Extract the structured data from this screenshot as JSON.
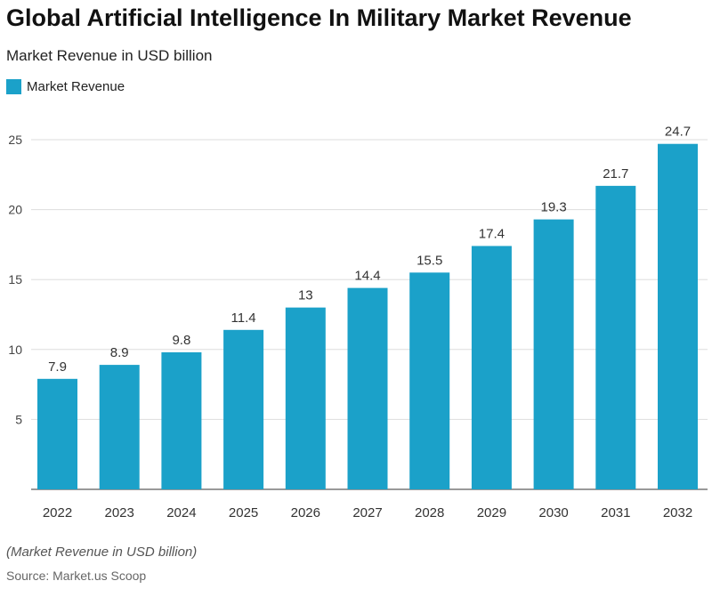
{
  "chart_data": {
    "type": "bar",
    "title": "Global Artificial Intelligence In Military Market Revenue",
    "subtitle": "Market Revenue in USD billion",
    "legend": [
      "Market Revenue"
    ],
    "legend_position": "top-left",
    "categories": [
      "2022",
      "2023",
      "2024",
      "2025",
      "2026",
      "2027",
      "2028",
      "2029",
      "2030",
      "2031",
      "2032"
    ],
    "values": [
      7.9,
      8.9,
      9.8,
      11.4,
      13,
      14.4,
      15.5,
      17.4,
      19.3,
      21.7,
      24.7
    ],
    "yticks": [
      5,
      10,
      15,
      20,
      25
    ],
    "ylim": [
      0,
      25
    ],
    "grid": true,
    "xlabel": "",
    "ylabel": "",
    "color": "#1BA1C9"
  },
  "footer": {
    "note": "(Market Revenue in USD billion)",
    "source": "Source: Market.us Scoop"
  }
}
